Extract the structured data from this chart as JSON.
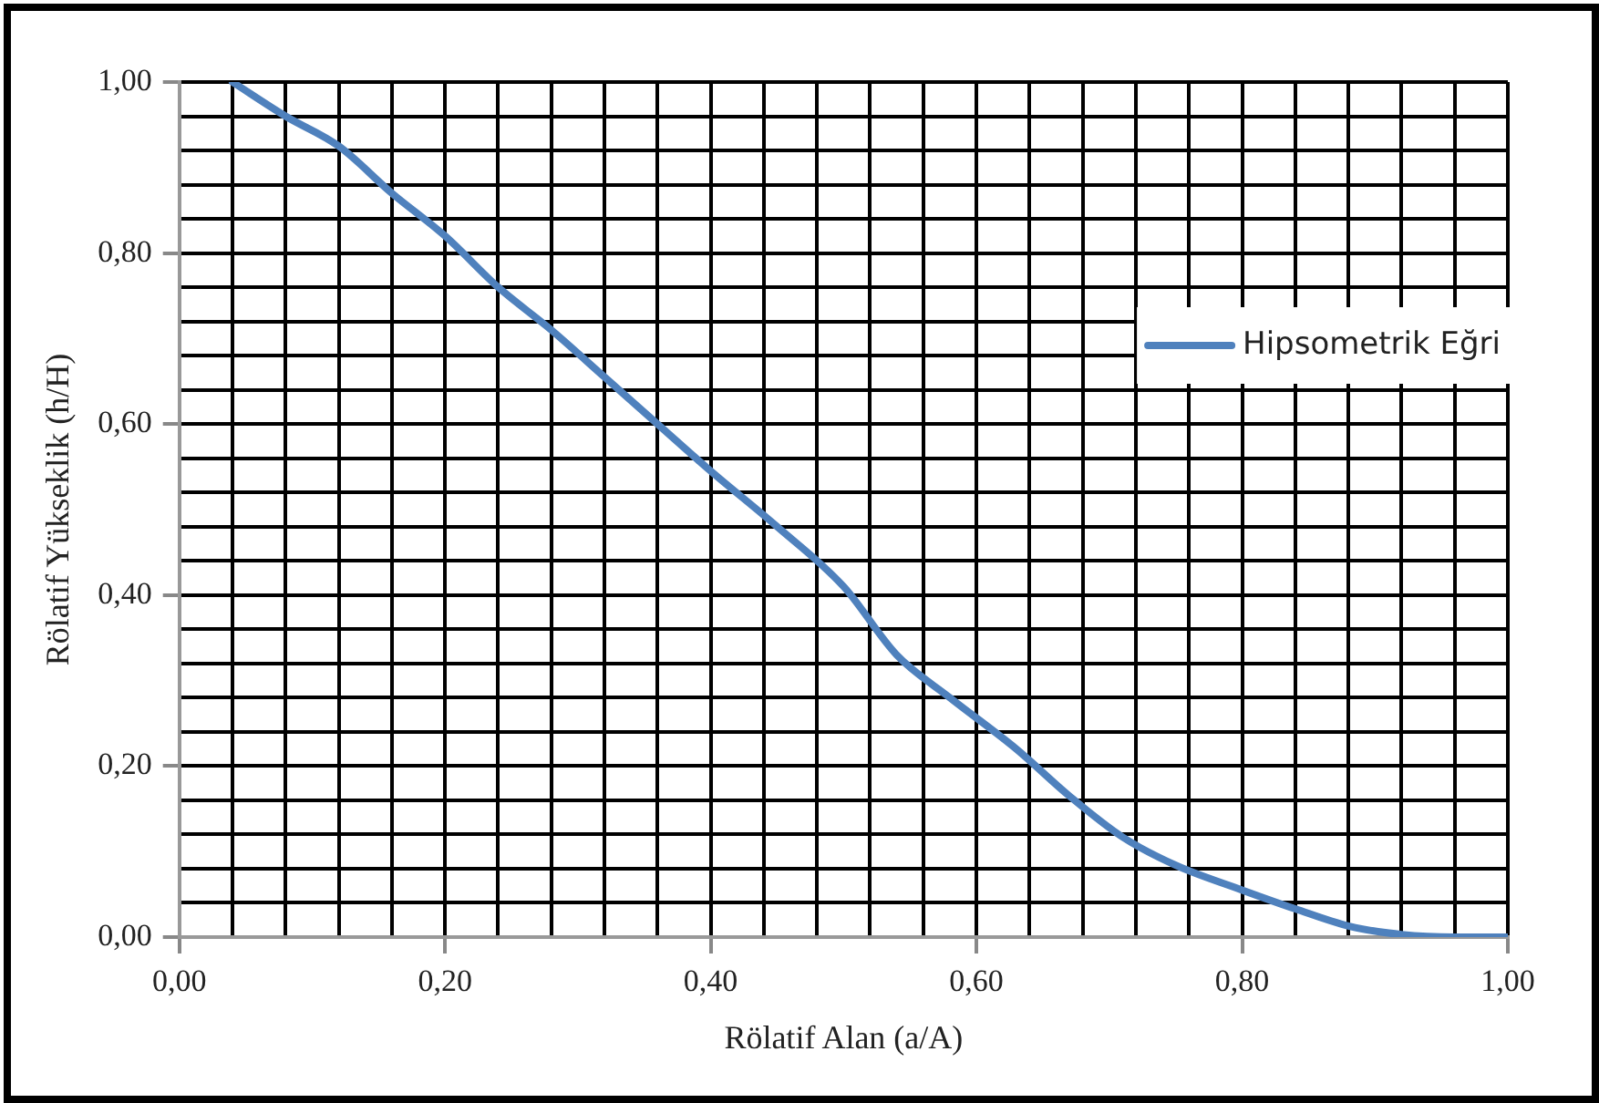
{
  "chart_data": {
    "type": "line",
    "xlabel": "Rölatif Alan (a/A)",
    "ylabel": "Rölatif Yükseklik (h/H)",
    "xlim": [
      0,
      1
    ],
    "ylim": [
      0,
      1
    ],
    "xticks": [
      {
        "value": 0,
        "label": "0,00"
      },
      {
        "value": 0.04,
        "label": null
      },
      {
        "value": 0.08,
        "label": null
      },
      {
        "value": 0.12,
        "label": null
      },
      {
        "value": 0.16,
        "label": null
      },
      {
        "value": 0.2,
        "label": "0,20"
      },
      {
        "value": 0.24,
        "label": null
      },
      {
        "value": 0.28,
        "label": null
      },
      {
        "value": 0.32,
        "label": null
      },
      {
        "value": 0.36,
        "label": null
      },
      {
        "value": 0.4,
        "label": "0,40"
      },
      {
        "value": 0.44,
        "label": null
      },
      {
        "value": 0.48,
        "label": null
      },
      {
        "value": 0.52,
        "label": null
      },
      {
        "value": 0.56,
        "label": null
      },
      {
        "value": 0.6,
        "label": "0,60"
      },
      {
        "value": 0.64,
        "label": null
      },
      {
        "value": 0.68,
        "label": null
      },
      {
        "value": 0.72,
        "label": null
      },
      {
        "value": 0.76,
        "label": null
      },
      {
        "value": 0.8,
        "label": "0,80"
      },
      {
        "value": 0.84,
        "label": null
      },
      {
        "value": 0.88,
        "label": null
      },
      {
        "value": 0.92,
        "label": null
      },
      {
        "value": 0.96,
        "label": null
      },
      {
        "value": 1,
        "label": "1,00"
      }
    ],
    "yticks": [
      {
        "value": 0,
        "label": "0,00"
      },
      {
        "value": 0.04,
        "label": null
      },
      {
        "value": 0.08,
        "label": null
      },
      {
        "value": 0.12,
        "label": null
      },
      {
        "value": 0.16,
        "label": null
      },
      {
        "value": 0.2,
        "label": "0,20"
      },
      {
        "value": 0.24,
        "label": null
      },
      {
        "value": 0.28,
        "label": null
      },
      {
        "value": 0.32,
        "label": null
      },
      {
        "value": 0.36,
        "label": null
      },
      {
        "value": 0.4,
        "label": "0,40"
      },
      {
        "value": 0.44,
        "label": null
      },
      {
        "value": 0.48,
        "label": null
      },
      {
        "value": 0.52,
        "label": null
      },
      {
        "value": 0.56,
        "label": null
      },
      {
        "value": 0.6,
        "label": "0,60"
      },
      {
        "value": 0.64,
        "label": null
      },
      {
        "value": 0.68,
        "label": null
      },
      {
        "value": 0.72,
        "label": null
      },
      {
        "value": 0.76,
        "label": null
      },
      {
        "value": 0.8,
        "label": "0,80"
      },
      {
        "value": 0.84,
        "label": null
      },
      {
        "value": 0.88,
        "label": null
      },
      {
        "value": 0.92,
        "label": null
      },
      {
        "value": 0.96,
        "label": null
      },
      {
        "value": 1,
        "label": "1,00"
      }
    ],
    "grid": true,
    "legend": "right",
    "marker": "none",
    "line_style": "solid",
    "series": [
      {
        "name": "Hipsometrik Eğri",
        "color": "#4f81bd",
        "x": [
          0.04,
          0.08,
          0.12,
          0.16,
          0.2,
          0.24,
          0.28,
          0.32,
          0.36,
          0.4,
          0.45,
          0.5,
          0.54,
          0.58,
          0.63,
          0.67,
          0.71,
          0.75,
          0.8,
          0.84,
          0.88,
          0.92,
          0.96,
          1
        ],
        "values": [
          1,
          0.96,
          0.925,
          0.87,
          0.82,
          0.76,
          0.71,
          0.655,
          0.6,
          0.545,
          0.48,
          0.41,
          0.33,
          0.28,
          0.22,
          0.165,
          0.117,
          0.084,
          0.055,
          0.033,
          0.013,
          0.003,
          0,
          0
        ]
      }
    ]
  }
}
